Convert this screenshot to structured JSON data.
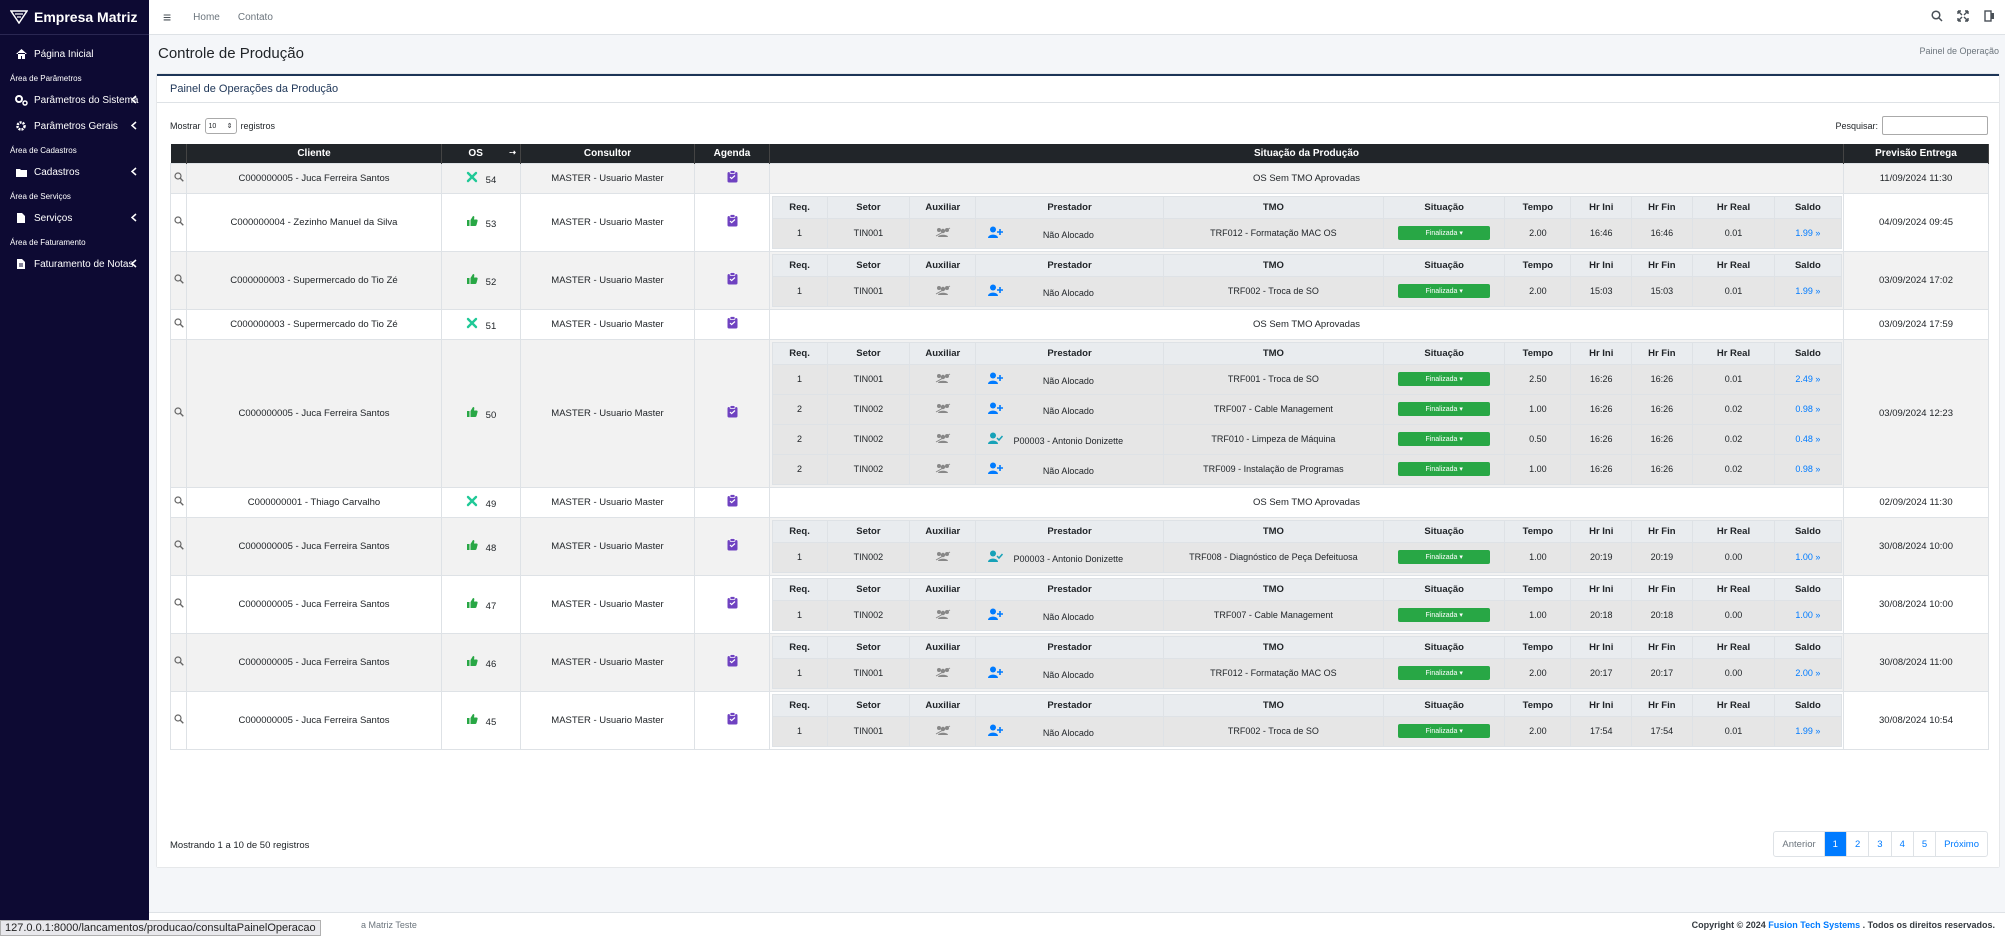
{
  "brand": "Empresa Matriz",
  "sidebar": {
    "items": [
      {
        "type": "item",
        "label": "Página Inicial",
        "icon": "home-icon"
      },
      {
        "type": "head",
        "label": "Área de Parâmetros"
      },
      {
        "type": "item",
        "label": "Parâmetros do Sistema",
        "icon": "gears-icon",
        "chev": true
      },
      {
        "type": "item",
        "label": "Parâmetros Gerais",
        "icon": "gear-icon",
        "chev": true
      },
      {
        "type": "head",
        "label": "Área de Cadastros"
      },
      {
        "type": "item",
        "label": "Cadastros",
        "icon": "folder-icon",
        "chev": true
      },
      {
        "type": "head",
        "label": "Área de Serviços"
      },
      {
        "type": "item",
        "label": "Serviços",
        "icon": "file-icon",
        "chev": true
      },
      {
        "type": "head",
        "label": "Área de Faturamento"
      },
      {
        "type": "item",
        "label": "Faturamento de Notas",
        "icon": "invoice-icon",
        "chev": true
      }
    ]
  },
  "navbar": {
    "home": "Home",
    "contato": "Contato"
  },
  "page": {
    "title": "Controle de Produção",
    "breadcrumb": "Painel de Operação"
  },
  "card": {
    "title": "Painel de Operações da Produção"
  },
  "length": {
    "prefix": "Mostrar",
    "value": "10",
    "suffix": "registros"
  },
  "search": {
    "label": "Pesquisar:"
  },
  "table": {
    "headers": [
      "Cliente",
      "OS",
      "Consultor",
      "Agenda",
      "Situação da Produção",
      "Previsão Entrega"
    ],
    "sub_headers": [
      "Req.",
      "Setor",
      "Auxiliar",
      "Prestador",
      "TMO",
      "Situação",
      "Tempo",
      "Hr Ini",
      "Hr Fin",
      "Hr Real",
      "Saldo"
    ],
    "no_tmo": "OS Sem TMO Aprovadas",
    "rows": [
      {
        "cliente": "C000000005 - Juca Ferreira Santos",
        "os": "54",
        "status": "tools",
        "consultor": "MASTER - Usuario Master",
        "prev": "11/09/2024 11:30",
        "subs": []
      },
      {
        "cliente": "C000000004 - Zezinho Manuel da Silva",
        "os": "53",
        "status": "ok",
        "consultor": "MASTER - Usuario Master",
        "prev": "04/09/2024 09:45",
        "subs": [
          {
            "req": "1",
            "setor": "TIN001",
            "prest": "Não Alocado",
            "pico": "add",
            "tmo": "TRF012 - Formatação MAC OS",
            "sit": "Finalizada",
            "tempo": "2.00",
            "ini": "16:46",
            "fin": "16:46",
            "real": "0.01",
            "saldo": "1.99"
          }
        ]
      },
      {
        "cliente": "C000000003 - Supermercado do Tio Zé",
        "os": "52",
        "status": "ok",
        "consultor": "MASTER - Usuario Master",
        "prev": "03/09/2024 17:02",
        "subs": [
          {
            "req": "1",
            "setor": "TIN001",
            "prest": "Não Alocado",
            "pico": "add",
            "tmo": "TRF002 - Troca de SO",
            "sit": "Finalizada",
            "tempo": "2.00",
            "ini": "15:03",
            "fin": "15:03",
            "real": "0.01",
            "saldo": "1.99"
          }
        ]
      },
      {
        "cliente": "C000000003 - Supermercado do Tio Zé",
        "os": "51",
        "status": "tools",
        "consultor": "MASTER - Usuario Master",
        "prev": "03/09/2024 17:59",
        "subs": []
      },
      {
        "cliente": "C000000005 - Juca Ferreira Santos",
        "os": "50",
        "status": "ok",
        "consultor": "MASTER - Usuario Master",
        "prev": "03/09/2024 12:23",
        "subs": [
          {
            "req": "1",
            "setor": "TIN001",
            "prest": "Não Alocado",
            "pico": "add",
            "tmo": "TRF001 - Troca de SO",
            "sit": "Finalizada",
            "tempo": "2.50",
            "ini": "16:26",
            "fin": "16:26",
            "real": "0.01",
            "saldo": "2.49"
          },
          {
            "req": "2",
            "setor": "TIN002",
            "prest": "Não Alocado",
            "pico": "add",
            "tmo": "TRF007 - Cable Management",
            "sit": "Finalizada",
            "tempo": "1.00",
            "ini": "16:26",
            "fin": "16:26",
            "real": "0.02",
            "saldo": "0.98"
          },
          {
            "req": "2",
            "setor": "TIN002",
            "prest": "P00003 - Antonio Donizette",
            "pico": "ok",
            "tmo": "TRF010 - Limpeza de Máquina",
            "sit": "Finalizada",
            "tempo": "0.50",
            "ini": "16:26",
            "fin": "16:26",
            "real": "0.02",
            "saldo": "0.48"
          },
          {
            "req": "2",
            "setor": "TIN002",
            "prest": "Não Alocado",
            "pico": "add",
            "tmo": "TRF009 - Instalação de Programas",
            "sit": "Finalizada",
            "tempo": "1.00",
            "ini": "16:26",
            "fin": "16:26",
            "real": "0.02",
            "saldo": "0.98"
          }
        ]
      },
      {
        "cliente": "C000000001 - Thiago Carvalho",
        "os": "49",
        "status": "tools",
        "consultor": "MASTER - Usuario Master",
        "prev": "02/09/2024 11:30",
        "subs": []
      },
      {
        "cliente": "C000000005 - Juca Ferreira Santos",
        "os": "48",
        "status": "ok",
        "consultor": "MASTER - Usuario Master",
        "prev": "30/08/2024 10:00",
        "subs": [
          {
            "req": "1",
            "setor": "TIN002",
            "prest": "P00003 - Antonio Donizette",
            "pico": "ok",
            "tmo": "TRF008 - Diagnóstico de Peça Defeituosa",
            "sit": "Finalizada",
            "tempo": "1.00",
            "ini": "20:19",
            "fin": "20:19",
            "real": "0.00",
            "saldo": "1.00"
          }
        ]
      },
      {
        "cliente": "C000000005 - Juca Ferreira Santos",
        "os": "47",
        "status": "ok",
        "consultor": "MASTER - Usuario Master",
        "prev": "30/08/2024 10:00",
        "subs": [
          {
            "req": "1",
            "setor": "TIN002",
            "prest": "Não Alocado",
            "pico": "add",
            "tmo": "TRF007 - Cable Management",
            "sit": "Finalizada",
            "tempo": "1.00",
            "ini": "20:18",
            "fin": "20:18",
            "real": "0.00",
            "saldo": "1.00"
          }
        ]
      },
      {
        "cliente": "C000000005 - Juca Ferreira Santos",
        "os": "46",
        "status": "ok",
        "consultor": "MASTER - Usuario Master",
        "prev": "30/08/2024 11:00",
        "subs": [
          {
            "req": "1",
            "setor": "TIN001",
            "prest": "Não Alocado",
            "pico": "add",
            "tmo": "TRF012 - Formatação MAC OS",
            "sit": "Finalizada",
            "tempo": "2.00",
            "ini": "20:17",
            "fin": "20:17",
            "real": "0.00",
            "saldo": "2.00"
          }
        ]
      },
      {
        "cliente": "C000000005 - Juca Ferreira Santos",
        "os": "45",
        "status": "ok",
        "consultor": "MASTER - Usuario Master",
        "prev": "30/08/2024 10:54",
        "subs": [
          {
            "req": "1",
            "setor": "TIN001",
            "prest": "Não Alocado",
            "pico": "add",
            "tmo": "TRF002 - Troca de SO",
            "sit": "Finalizada",
            "tempo": "2.00",
            "ini": "17:54",
            "fin": "17:54",
            "real": "0.01",
            "saldo": "1.99"
          }
        ]
      }
    ]
  },
  "info": "Mostrando 1 a 10 de 50 registros",
  "pager": [
    "Anterior",
    "1",
    "2",
    "3",
    "4",
    "5",
    "Próximo"
  ],
  "footer": {
    "left": "a Matriz Teste",
    "copy_pre": "Copyright © 2024",
    "copy_brand": "Fusion Tech Systems",
    "copy_post": ". Todos os direitos reservados."
  },
  "status_url": "127.0.0.1:8000/lancamentos/producao/consultaPainelOperacao",
  "colors": {
    "sidebar": "#0d0a33",
    "accent": "#007bff",
    "success": "#28a745",
    "agenda": "#6f42c1"
  }
}
